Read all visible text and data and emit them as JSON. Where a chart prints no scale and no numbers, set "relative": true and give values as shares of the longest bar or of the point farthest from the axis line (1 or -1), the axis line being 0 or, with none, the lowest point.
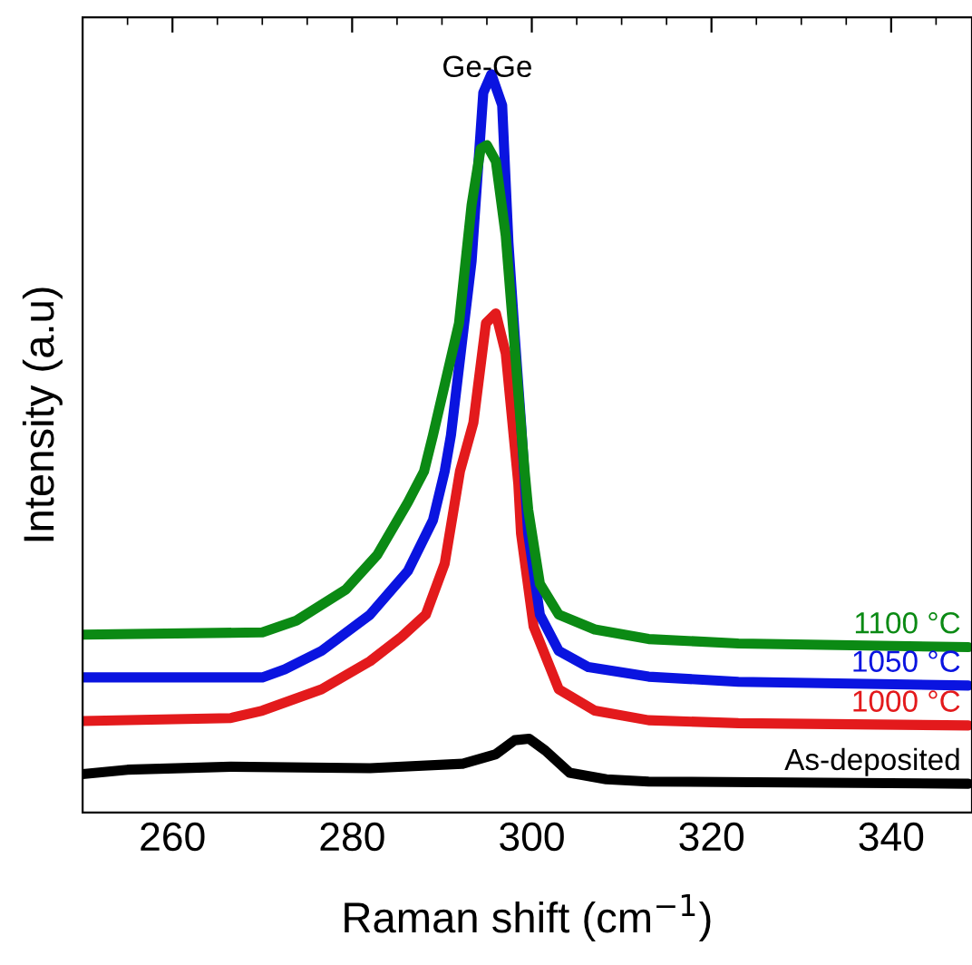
{
  "chart_data": {
    "type": "line",
    "xlabel": "Raman shift (cm$^{−1}$)",
    "ylabel": "Intensity (a.u)",
    "relative": true,
    "xlim": [
      250,
      349
    ],
    "xticks": [
      260,
      280,
      300,
      320,
      340
    ],
    "tick_labels": "x",
    "grid": false,
    "legend": "right",
    "marker": "none",
    "line_style": "solid",
    "annotations": [
      "Ge-Ge"
    ],
    "series": [
      {
        "name": "As-deposited",
        "color": "#000000",
        "x": [
          250,
          255,
          266.5,
          282,
          292.3,
          296,
          298.1,
          299.7,
          301.5,
          304.2,
          308.3,
          313,
          348.6
        ],
        "values": [
          0.052,
          0.058,
          0.062,
          0.06,
          0.066,
          0.079,
          0.098,
          0.1,
          0.084,
          0.054,
          0.045,
          0.042,
          0.039
        ]
      },
      {
        "name": "1000 °C",
        "color": "#e31a1c",
        "x": [
          250,
          266.5,
          270,
          276.6,
          282,
          285.5,
          288.2,
          290.3,
          292,
          293.5,
          294.9,
          296,
          297.1,
          298.5,
          298.8,
          300.2,
          303,
          307,
          313,
          323,
          348.6
        ],
        "values": [
          0.124,
          0.128,
          0.138,
          0.167,
          0.205,
          0.238,
          0.268,
          0.337,
          0.462,
          0.528,
          0.663,
          0.676,
          0.622,
          0.445,
          0.378,
          0.252,
          0.167,
          0.138,
          0.125,
          0.121,
          0.118
        ]
      },
      {
        "name": "1050 °C",
        "color": "#0a14e0",
        "x": [
          250,
          270,
          272.5,
          276.6,
          282,
          286.2,
          289,
          290.3,
          291,
          293.3,
          294.6,
          295.5,
          296.7,
          297.4,
          298.1,
          298.8,
          299.6,
          300.9,
          303,
          306.3,
          313,
          323,
          348.6
        ],
        "values": [
          0.183,
          0.183,
          0.194,
          0.219,
          0.268,
          0.327,
          0.396,
          0.462,
          0.511,
          0.747,
          0.975,
          1.0,
          0.958,
          0.772,
          0.646,
          0.528,
          0.378,
          0.268,
          0.219,
          0.197,
          0.184,
          0.177,
          0.172
        ]
      },
      {
        "name": "1100 °C",
        "color": "#0b8a14",
        "x": [
          250,
          270,
          273.8,
          279.3,
          282.8,
          286.2,
          288,
          289,
          291.9,
          293.3,
          294.3,
          295,
          296,
          297.1,
          298.1,
          299.2,
          299.6,
          300.9,
          303,
          307,
          313,
          323,
          348.6
        ],
        "values": [
          0.241,
          0.244,
          0.26,
          0.302,
          0.349,
          0.42,
          0.462,
          0.511,
          0.663,
          0.823,
          0.899,
          0.904,
          0.882,
          0.781,
          0.629,
          0.462,
          0.41,
          0.31,
          0.268,
          0.248,
          0.235,
          0.229,
          0.224
        ]
      }
    ]
  }
}
